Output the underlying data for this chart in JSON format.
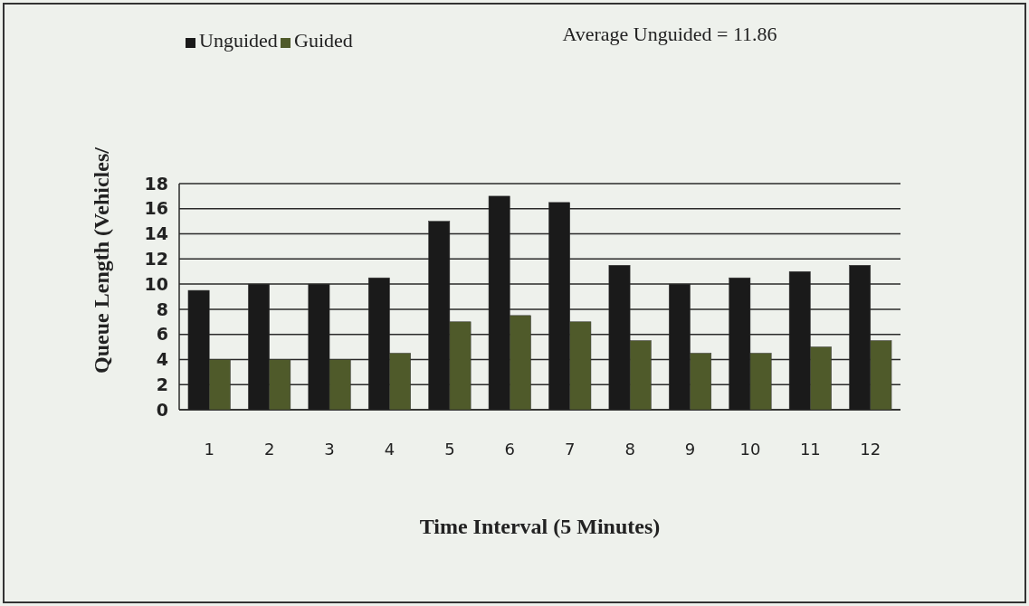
{
  "chart_data": {
    "type": "bar",
    "categories": [
      "1",
      "2",
      "3",
      "4",
      "5",
      "6",
      "7",
      "8",
      "9",
      "10",
      "11",
      "12"
    ],
    "series": [
      {
        "name": "Unguided",
        "color": "#1a1a1a",
        "values": [
          9.5,
          10,
          10,
          10.5,
          15,
          17,
          16.5,
          11.5,
          10,
          10.5,
          11,
          11.5
        ]
      },
      {
        "name": "Guided",
        "color": "#4f5a2a",
        "values": [
          4,
          4,
          4,
          4.5,
          7,
          7.5,
          7,
          5.5,
          4.5,
          4.5,
          5,
          5.5
        ]
      }
    ],
    "xlabel": "Time Interval (5 Minutes)",
    "ylabel": "Queue Length (Vehicles/",
    "ylim": [
      0,
      18
    ],
    "yticks": [
      0,
      2,
      4,
      6,
      8,
      10,
      12,
      14,
      16,
      18
    ],
    "grid": "y",
    "legend": "top left",
    "annotations": [
      "Average Unguided = 11.86"
    ]
  }
}
